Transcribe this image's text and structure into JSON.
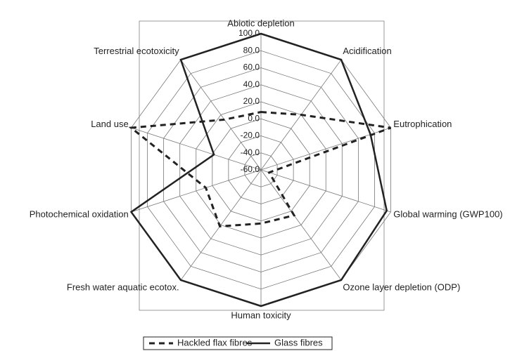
{
  "chart_data": {
    "type": "radar",
    "categories": [
      "Abiotic depletion",
      "Acidification",
      "Eutrophication",
      "Global warming (GWP100)",
      "Ozone layer depletion (ODP)",
      "Human toxicity",
      "Fresh water aquatic ecotox.",
      "Photochemical oxidation",
      "Land use",
      "Terrestrial ecotoxicity"
    ],
    "series": [
      {
        "name": "Hackled flax fibres",
        "color": "#222222",
        "dash": true,
        "values": [
          8,
          20,
          100,
          -50,
          6,
          3,
          22,
          8,
          100,
          13
        ]
      },
      {
        "name": "Glass fibres",
        "color": "#222222",
        "dash": false,
        "values": [
          100,
          100,
          75,
          95,
          100,
          100,
          100,
          100,
          -2,
          100
        ]
      }
    ],
    "ylim": [
      -60,
      100
    ],
    "yticks": [
      {
        "value": -60,
        "label": "-60.0"
      },
      {
        "value": -40,
        "label": "-40.0"
      },
      {
        "value": -20,
        "label": "-20.0"
      },
      {
        "value": 0,
        "label": "0.0"
      },
      {
        "value": 20,
        "label": "20.0"
      },
      {
        "value": 40,
        "label": "40.0"
      },
      {
        "value": 60,
        "label": "60.0"
      },
      {
        "value": 80,
        "label": "80.0"
      },
      {
        "value": 100,
        "label": "100.0"
      }
    ],
    "grid": true,
    "legend": "bottom"
  }
}
